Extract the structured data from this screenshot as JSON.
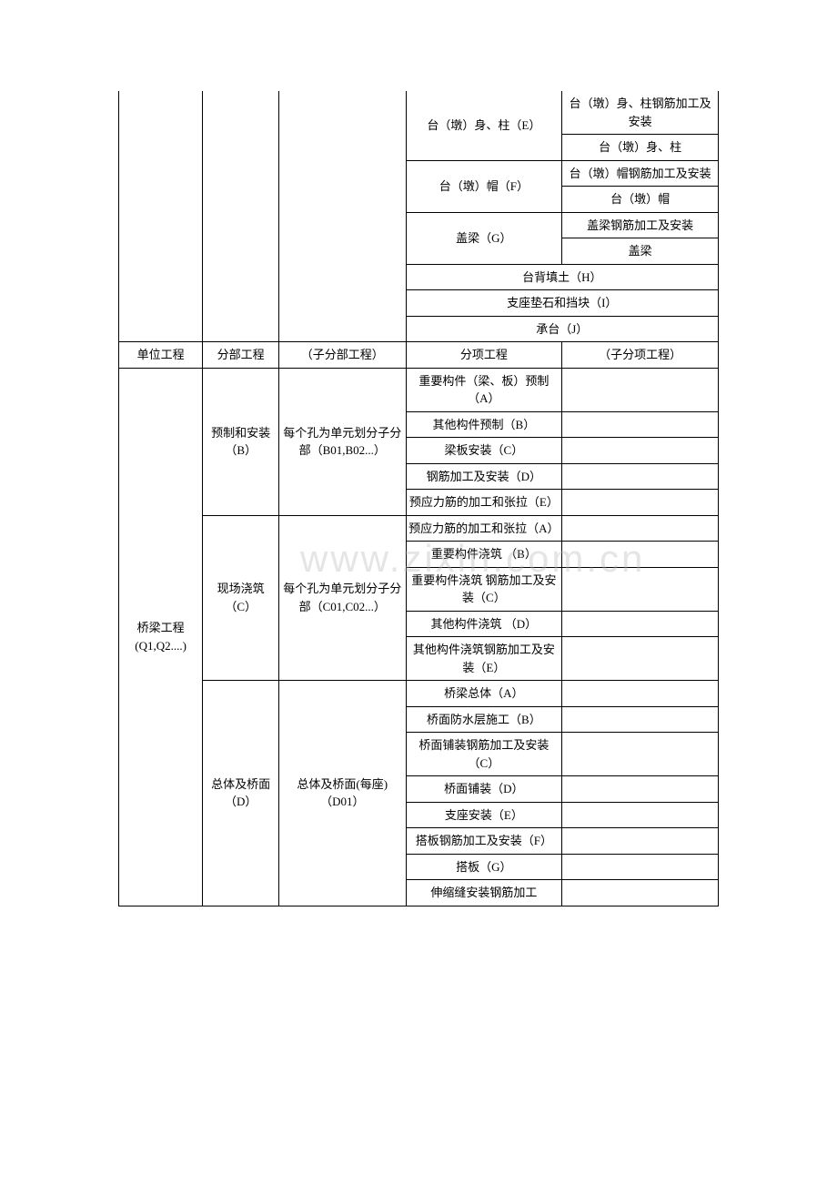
{
  "watermark": "www.zixin.com.cn",
  "table1": {
    "r1c4": "台（墩）身、柱（E）",
    "r1c5a": "台（墩）身、柱钢筋加工及安装",
    "r1c5b": "台（墩）身、柱",
    "r2c4": "台（墩）帽（F）",
    "r2c5a": "台（墩）帽钢筋加工及安装",
    "r2c5b": "台（墩）帽",
    "r3c4": "盖梁（G）",
    "r3c5a": "盖梁钢筋加工及安装",
    "r3c5b": "盖梁",
    "r4": "台背填土（H）",
    "r5": "支座垫石和挡块（I）",
    "r6": "承台（J）"
  },
  "header": {
    "c1": "单位工程",
    "c2": "分部工程",
    "c3": "（子分部工程）",
    "c4": "分项工程",
    "c5": "（子分项工程）"
  },
  "table2": {
    "c1": "桥梁工程\n(Q1,Q2....)",
    "secB": {
      "c2": "预制和安装（B）",
      "c3": "每个孔为单元划分子分部（B01,B02...）",
      "items": [
        "重要构件（梁、板）预制（A）",
        "其他构件预制（B）",
        "梁板安装（C）",
        "钢筋加工及安装（D）",
        "预应力筋的加工和张拉（E）"
      ]
    },
    "secC": {
      "c2": "现场浇筑（C）",
      "c3": "每个孔为单元划分子分部（C01,C02...）",
      "items": [
        "预应力筋的加工和张拉（A）",
        "重要构件浇筑 （B）",
        "重要构件浇筑 钢筋加工及安装（C）",
        "其他构件浇筑 （D）",
        "其他构件浇筑钢筋加工及安装（E）"
      ]
    },
    "secD": {
      "c2": "总体及桥面（D）",
      "c3": "总体及桥面(每座)（D01）",
      "items": [
        "桥梁总体（A）",
        "桥面防水层施工（B）",
        "桥面铺装钢筋加工及安装（C）",
        "桥面铺装（D）",
        "支座安装（E）",
        "搭板钢筋加工及安装（F）",
        "搭板（G）",
        "伸缩缝安装钢筋加工"
      ]
    }
  }
}
